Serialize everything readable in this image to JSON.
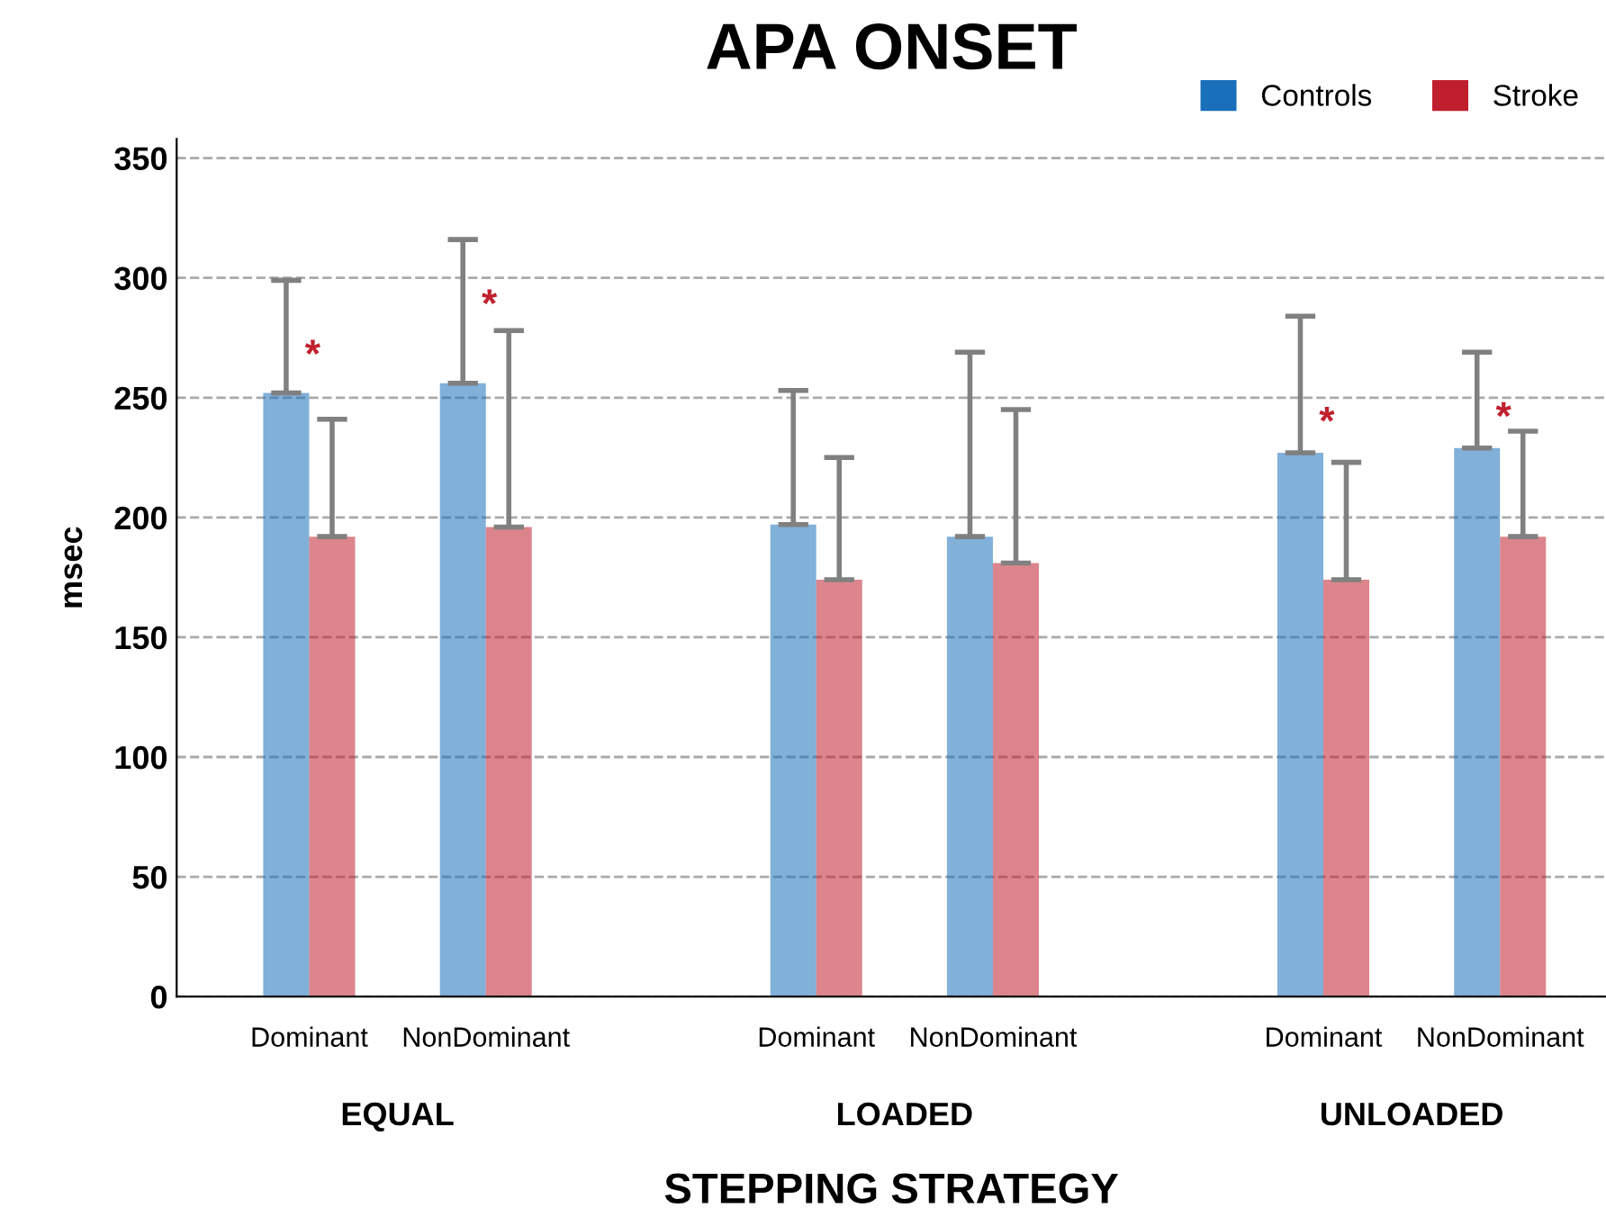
{
  "chart_data": {
    "type": "bar",
    "title": "APA ONSET",
    "xlabel": "STEPPING STRATEGY",
    "ylabel": "msec",
    "categories": [
      "Dominant",
      "NonDominant",
      "Dominant",
      "NonDominant",
      "Dominant",
      "NonDominant"
    ],
    "series": [
      {
        "name": "Controls",
        "color": "#1a6fba",
        "values": [
          252,
          256,
          197,
          192,
          227,
          229
        ],
        "errors": [
          [
            252,
            299
          ],
          [
            256,
            316
          ],
          [
            197,
            253
          ],
          [
            192,
            269
          ],
          [
            227,
            284
          ],
          [
            229,
            269
          ]
        ]
      },
      {
        "name": "Stroke",
        "color": "#c0202e",
        "values": [
          192,
          196,
          174,
          181,
          174,
          192
        ],
        "errors": [
          [
            192,
            241
          ],
          [
            196,
            278
          ],
          [
            174,
            225
          ],
          [
            181,
            245
          ],
          [
            174,
            223
          ],
          [
            192,
            236
          ]
        ]
      }
    ],
    "annotations": [
      "EQUAL",
      "LOADED",
      "UNLOADED",
      "*",
      "*",
      "*",
      "*"
    ],
    "ylim": [
      0,
      358
    ],
    "yticks": [
      0,
      50,
      100,
      150,
      200,
      250,
      300,
      350
    ],
    "grid": "y",
    "legend": "top right"
  }
}
